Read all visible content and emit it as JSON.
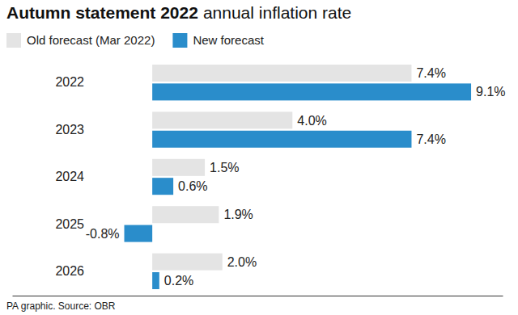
{
  "chart_data": {
    "type": "bar",
    "orientation": "horizontal",
    "title": "Autumn statement 2022",
    "subtitle": "annual inflation rate",
    "source": "PA graphic. Source: OBR",
    "categories": [
      "2022",
      "2023",
      "2024",
      "2025",
      "2026"
    ],
    "series": [
      {
        "name": "Old forecast (Mar 2022)",
        "color": "#e4e4e4",
        "values": [
          7.4,
          4.0,
          1.5,
          1.9,
          2.0
        ],
        "value_labels": [
          "7.4%",
          "4.0%",
          "1.5%",
          "1.9%",
          "2.0%"
        ]
      },
      {
        "name": "New forecast",
        "color": "#2a8dcb",
        "values": [
          9.1,
          7.4,
          0.6,
          -0.8,
          0.2
        ],
        "value_labels": [
          "9.1%",
          "7.4%",
          "0.6%",
          "-0.8%",
          "0.2%"
        ]
      }
    ],
    "xlim": [
      -4,
      10
    ],
    "xticks": [],
    "data_labels": true,
    "legend": "top-left",
    "grid": false,
    "tick_labels": "y"
  }
}
